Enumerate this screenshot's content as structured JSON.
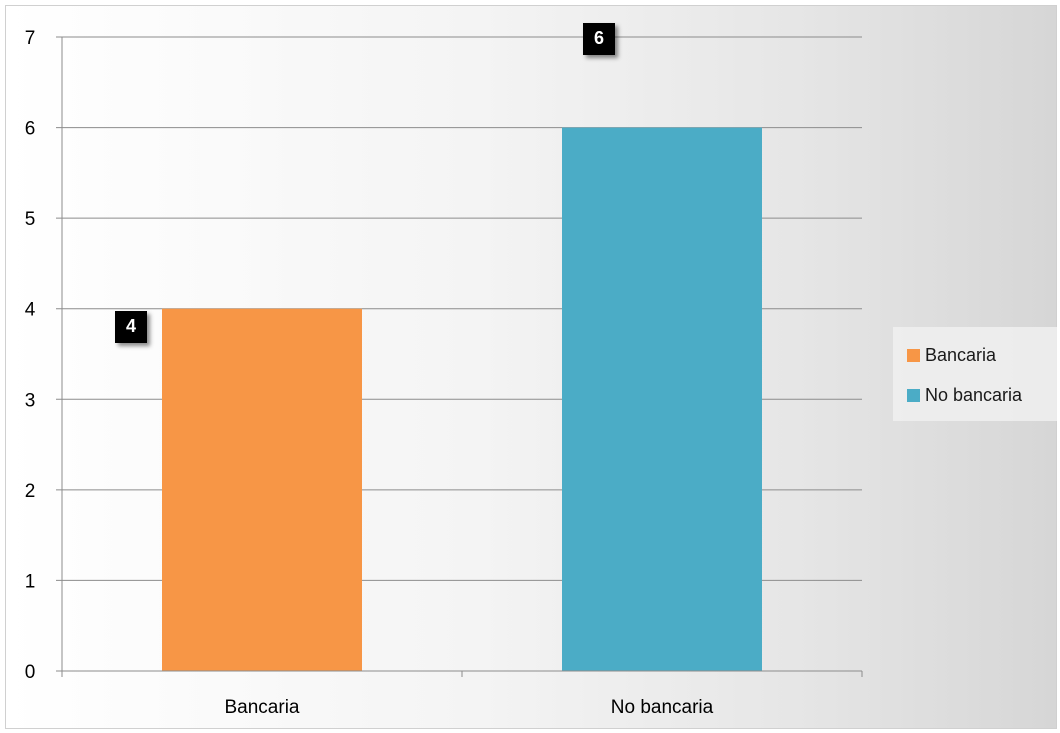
{
  "chart_data": {
    "type": "bar",
    "categories": [
      "Bancaria",
      "No bancaria"
    ],
    "series": [
      {
        "name": "Bancaria",
        "values": [
          4,
          null
        ],
        "color": "#F79646"
      },
      {
        "name": "No bancaria",
        "values": [
          null,
          6
        ],
        "color": "#4BACC6"
      }
    ],
    "data_labels": [
      "4",
      "6"
    ],
    "title": "",
    "xlabel": "",
    "ylabel": "",
    "ylim": [
      0,
      7
    ],
    "yticks": [
      "0",
      "1",
      "2",
      "3",
      "4",
      "5",
      "6",
      "7"
    ],
    "grid": true,
    "legend_position": "right"
  }
}
